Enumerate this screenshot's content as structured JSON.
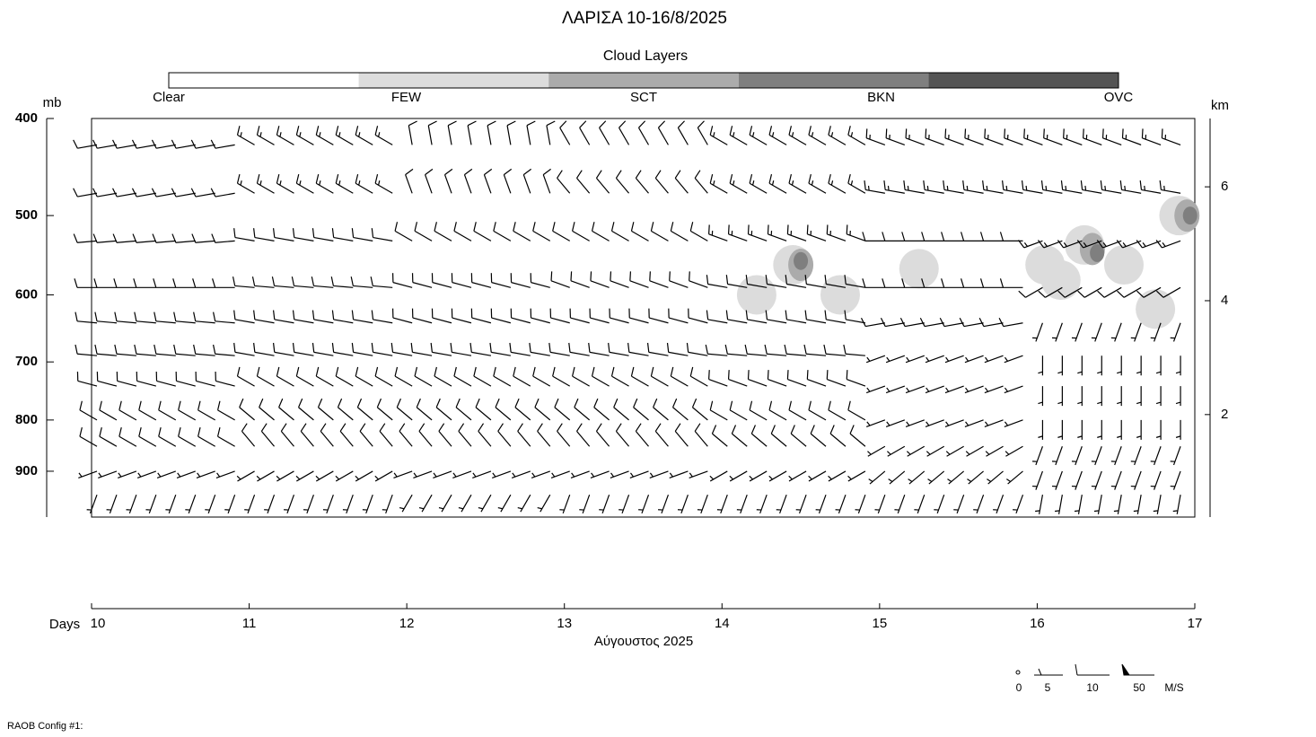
{
  "chart_data": {
    "type": "wind-cross-section",
    "title": "ΛΑΡΙΣΑ 10-16/8/2025",
    "legend": {
      "title": "Cloud Layers",
      "labels": [
        "Clear",
        "FEW",
        "SCT",
        "BKN",
        "OVC"
      ],
      "colors": [
        "#ffffff",
        "#dcdcdc",
        "#ababab",
        "#7f7f7f",
        "#545454"
      ]
    },
    "y_label": "mb",
    "y2_label": "km",
    "x_label": "Days",
    "x_sublabel": "Αύγουστος 2025",
    "ylim": [
      1000,
      400
    ],
    "yticks": [
      400,
      500,
      600,
      700,
      800,
      900
    ],
    "log_y": true,
    "y2lim": [
      0.2,
      7.2
    ],
    "y2ticks": [
      2,
      4,
      6
    ],
    "xlim": [
      10,
      17
    ],
    "xticks": [
      10,
      11,
      12,
      13,
      14,
      15,
      16,
      17
    ],
    "wind": {
      "levels": [
        425,
        475,
        530,
        590,
        640,
        690,
        740,
        800,
        850,
        900,
        950
      ],
      "days": [
        10,
        11,
        12,
        13,
        14,
        15,
        16
      ],
      "direction": [
        [
          260,
          300,
          350,
          330,
          300,
          290,
          290
        ],
        [
          260,
          300,
          340,
          320,
          300,
          280,
          280
        ],
        [
          265,
          280,
          300,
          300,
          290,
          270,
          250
        ],
        [
          270,
          275,
          285,
          290,
          280,
          270,
          240
        ],
        [
          275,
          280,
          285,
          285,
          280,
          260,
          200
        ],
        [
          275,
          280,
          280,
          280,
          275,
          250,
          180
        ],
        [
          285,
          300,
          300,
          300,
          290,
          250,
          180
        ],
        [
          300,
          310,
          310,
          310,
          300,
          250,
          180
        ],
        [
          300,
          320,
          320,
          320,
          310,
          240,
          200
        ],
        [
          250,
          240,
          250,
          250,
          240,
          230,
          200
        ],
        [
          200,
          200,
          210,
          200,
          200,
          200,
          190
        ]
      ],
      "speed": [
        [
          10,
          15,
          10,
          10,
          15,
          15,
          15
        ],
        [
          10,
          15,
          10,
          10,
          15,
          15,
          15
        ],
        [
          10,
          10,
          10,
          10,
          15,
          10,
          15
        ],
        [
          10,
          10,
          10,
          10,
          10,
          10,
          10
        ],
        [
          10,
          10,
          10,
          10,
          10,
          10,
          5
        ],
        [
          10,
          10,
          10,
          10,
          10,
          5,
          5
        ],
        [
          10,
          10,
          10,
          10,
          10,
          5,
          5
        ],
        [
          10,
          10,
          10,
          10,
          10,
          5,
          5
        ],
        [
          10,
          10,
          10,
          10,
          10,
          5,
          5
        ],
        [
          5,
          5,
          5,
          5,
          5,
          5,
          5
        ],
        [
          5,
          5,
          5,
          5,
          5,
          5,
          5
        ]
      ]
    },
    "clouds": {
      "x": [
        14.45,
        14.22,
        14.75,
        15.25,
        16.05,
        16.15,
        16.3,
        16.55,
        16.75,
        16.9,
        14.5,
        16.35,
        16.95,
        14.5,
        16.38,
        16.97
      ],
      "p": [
        560,
        600,
        600,
        565,
        560,
        580,
        535,
        560,
        620,
        500,
        560,
        540,
        500,
        555,
        545,
        500
      ],
      "cover": [
        1,
        1,
        1,
        1,
        1,
        1,
        1,
        1,
        1,
        1,
        2,
        2,
        2,
        3,
        3,
        3
      ]
    },
    "key": {
      "labels": [
        "0",
        "5",
        "10",
        "50"
      ],
      "unit": "M/S"
    },
    "footer": "RAOB Config #1:"
  }
}
